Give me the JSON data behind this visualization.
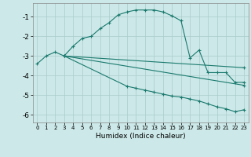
{
  "xlabel": "Humidex (Indice chaleur)",
  "background_color": "#cce8e8",
  "grid_color": "#aacccc",
  "line_color": "#1a7a6e",
  "xlim": [
    -0.5,
    23.5
  ],
  "ylim": [
    -6.4,
    -0.3
  ],
  "xticks": [
    0,
    1,
    2,
    3,
    4,
    5,
    6,
    7,
    8,
    9,
    10,
    11,
    12,
    13,
    14,
    15,
    16,
    17,
    18,
    19,
    20,
    21,
    22,
    23
  ],
  "yticks": [
    -6,
    -5,
    -4,
    -3,
    -2,
    -1
  ],
  "curve1_x": [
    0,
    1,
    2,
    3,
    4,
    5,
    6,
    7,
    8,
    9,
    10,
    11,
    12,
    13,
    14,
    15,
    16,
    17,
    18,
    19,
    20,
    21,
    22,
    23
  ],
  "curve1_y": [
    -3.4,
    -3.0,
    -2.8,
    -3.0,
    -2.5,
    -2.1,
    -2.0,
    -1.6,
    -1.3,
    -0.9,
    -0.75,
    -0.65,
    -0.65,
    -0.65,
    -0.75,
    -0.95,
    -1.2,
    -3.1,
    -2.7,
    -3.85,
    -3.85,
    -3.85,
    -4.35,
    -4.35
  ],
  "curve2_x": [
    3,
    23
  ],
  "curve2_y": [
    -3.0,
    -3.6
  ],
  "curve3_x": [
    3,
    23
  ],
  "curve3_y": [
    -3.0,
    -4.5
  ],
  "curve4_x": [
    3,
    10,
    11,
    12,
    13,
    14,
    15,
    16,
    17,
    18,
    19,
    20,
    21,
    22,
    23
  ],
  "curve4_y": [
    -3.0,
    -4.55,
    -4.65,
    -4.75,
    -4.85,
    -4.95,
    -5.05,
    -5.1,
    -5.2,
    -5.3,
    -5.45,
    -5.6,
    -5.7,
    -5.85,
    -5.75
  ]
}
